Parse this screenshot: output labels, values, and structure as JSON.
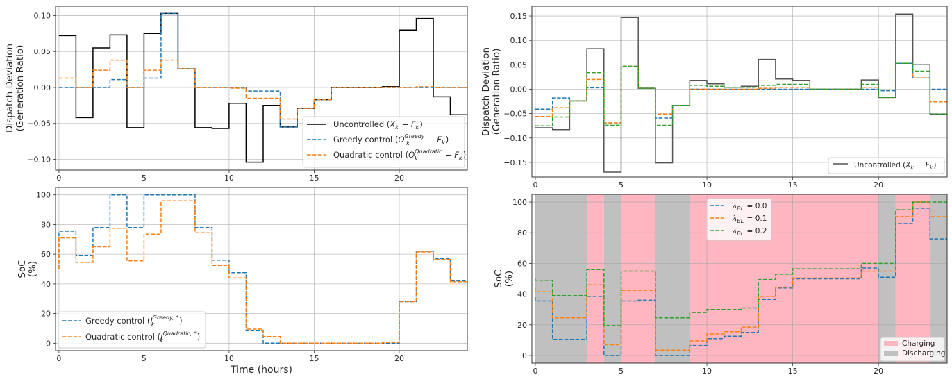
{
  "chart_data": [
    {
      "id": "dispatch-left",
      "type": "line",
      "step": "post",
      "title": "",
      "xlabel": "",
      "ylabel": [
        "Dispatch Deviation",
        "(Generation Ratio)"
      ],
      "xlim": [
        -0.2,
        24
      ],
      "ylim": [
        -0.115,
        0.113
      ],
      "xticks": [
        0,
        5,
        10,
        15,
        20
      ],
      "yticks": [
        -0.1,
        -0.05,
        0.0,
        0.05,
        0.1
      ],
      "ytick_labels": [
        "−0.10",
        "−0.05",
        "0.00",
        "0.05",
        "0.10"
      ],
      "grid": true,
      "legend_position": "lower-right",
      "series": [
        {
          "name": "Uncontrolled (X_k − F_k)",
          "label_parts": [
            "Uncontrolled (",
            "X",
            "k",
            " − ",
            "F",
            "k",
            ")"
          ],
          "color": "#000000",
          "style": "solid",
          "values": [
            0.072,
            -0.042,
            0.055,
            0.073,
            -0.056,
            0.075,
            0.103,
            0.026,
            -0.056,
            -0.057,
            -0.022,
            -0.104,
            -0.025,
            -0.055,
            -0.029,
            -0.017,
            0.0,
            0.0,
            0.0,
            0.001,
            0.08,
            0.096,
            -0.013,
            -0.038
          ]
        },
        {
          "name": "Greedy control (O_k^Greedy − F_k)",
          "color": "#1f77b4",
          "style": "dashed",
          "values": [
            0.0,
            0.0,
            0.0,
            0.011,
            0.0,
            0.013,
            0.103,
            0.026,
            0.0,
            0.0,
            0.0,
            -0.005,
            -0.005,
            -0.055,
            -0.029,
            -0.017,
            0.0,
            0.0,
            0.0,
            0.0,
            0.0,
            0.0,
            0.0,
            0.0
          ]
        },
        {
          "name": "Quadratic control (O_k^Quadratic − F_k)",
          "color": "#ff7f0e",
          "style": "dashed",
          "values": [
            0.013,
            0.0,
            0.024,
            0.038,
            0.0,
            0.024,
            0.038,
            0.026,
            0.0,
            0.0,
            -0.001,
            -0.015,
            -0.015,
            -0.044,
            -0.029,
            -0.017,
            0.0,
            0.0,
            0.0,
            0.0,
            0.0,
            0.001,
            0.0,
            0.0
          ]
        }
      ],
      "x": [
        0,
        1,
        2,
        3,
        4,
        5,
        6,
        7,
        8,
        9,
        10,
        11,
        12,
        13,
        14,
        15,
        16,
        17,
        18,
        19,
        20,
        21,
        22,
        23,
        24
      ]
    },
    {
      "id": "soc-left",
      "type": "line",
      "step": "post",
      "xlabel": "Time (hours)",
      "ylabel": [
        "SoC",
        "(%)"
      ],
      "xlim": [
        -0.2,
        24
      ],
      "ylim": [
        -5,
        105
      ],
      "xticks": [
        0,
        5,
        10,
        15,
        20
      ],
      "yticks": [
        0,
        20,
        40,
        60,
        80,
        100
      ],
      "grid": true,
      "legend_position": "lower-left",
      "series": [
        {
          "name": "Greedy control (I_k^{Greedy,*})",
          "color": "#1f77b4",
          "style": "dashed",
          "start": 50,
          "values": [
            75.5,
            59,
            78,
            100,
            78,
            100,
            100,
            100,
            78,
            56,
            47.5,
            8.5,
            0,
            0,
            0,
            0,
            0,
            0,
            0,
            0,
            28,
            62,
            57,
            42
          ]
        },
        {
          "name": "Quadratic control (I_k^{Quadratic,*})",
          "color": "#ff7f0e",
          "style": "dashed",
          "start": 50,
          "values": [
            71,
            54.5,
            65,
            77.5,
            55.5,
            73.5,
            96,
            96,
            74.5,
            52.5,
            44,
            9.5,
            4.5,
            0,
            0,
            0,
            0,
            0,
            0,
            0.5,
            28,
            61.5,
            56.5,
            41.5
          ]
        }
      ],
      "x": [
        0,
        1,
        2,
        3,
        4,
        5,
        6,
        7,
        8,
        9,
        10,
        11,
        12,
        13,
        14,
        15,
        16,
        17,
        18,
        19,
        20,
        21,
        22,
        23,
        24
      ]
    },
    {
      "id": "dispatch-right",
      "type": "line",
      "step": "post",
      "xlabel": "",
      "ylabel": [
        "Dispatch Deviation",
        "(Generation Ratio)"
      ],
      "xlim": [
        -0.2,
        24
      ],
      "ylim": [
        -0.18,
        0.17
      ],
      "xticks": [
        0,
        5,
        10,
        15,
        20
      ],
      "yticks": [
        -0.15,
        -0.1,
        -0.05,
        0.0,
        0.05,
        0.1,
        0.15
      ],
      "ytick_labels": [
        "−0.15",
        "−0.10",
        "−0.05",
        "0.00",
        "0.05",
        "0.10",
        "0.15"
      ],
      "grid": true,
      "legend_position": "lower-right",
      "series": [
        {
          "name": "Uncontrolled (X_k − F_k)",
          "color": "#555555",
          "style": "solid",
          "values": [
            -0.079,
            -0.083,
            -0.024,
            0.083,
            -0.17,
            0.147,
            0.002,
            -0.151,
            -0.033,
            0.018,
            0.011,
            0.004,
            0.006,
            0.061,
            0.021,
            0.018,
            0.0,
            0.0,
            0.0,
            0.019,
            -0.017,
            0.154,
            0.05,
            -0.051
          ]
        },
        {
          "name": "λ_BL = 0.0",
          "color": "#1f77b4",
          "style": "dashed",
          "values": [
            -0.041,
            -0.018,
            -0.024,
            0.003,
            -0.071,
            0.047,
            0.002,
            -0.059,
            -0.033,
            0.0,
            0.0,
            0.0,
            0.0,
            0.0,
            0.0,
            0.0,
            0.0,
            0.0,
            0.0,
            0.0,
            -0.003,
            0.053,
            0.023,
            0.0
          ]
        },
        {
          "name": "λ_BL = 0.1",
          "color": "#ff7f0e",
          "style": "dashed",
          "values": [
            -0.056,
            -0.038,
            -0.024,
            0.02,
            -0.069,
            0.047,
            0.002,
            -0.051,
            -0.033,
            0.0,
            0.0,
            0.0,
            0.0,
            0.002,
            0.004,
            0.004,
            0.0,
            0.0,
            0.0,
            0.004,
            -0.017,
            0.053,
            0.023,
            -0.026
          ]
        },
        {
          "name": "λ_BL = 0.2",
          "color": "#2ca02c",
          "style": "dashed",
          "values": [
            -0.075,
            -0.057,
            -0.024,
            0.034,
            -0.074,
            0.047,
            0.002,
            -0.074,
            -0.033,
            0.008,
            0.006,
            0.004,
            0.004,
            0.008,
            0.01,
            0.01,
            0.0,
            0.0,
            0.0,
            0.01,
            -0.017,
            0.053,
            0.037,
            -0.051
          ]
        }
      ],
      "x": [
        0,
        1,
        2,
        3,
        4,
        5,
        6,
        7,
        8,
        9,
        10,
        11,
        12,
        13,
        14,
        15,
        16,
        17,
        18,
        19,
        20,
        21,
        22,
        23,
        24
      ]
    },
    {
      "id": "soc-right",
      "type": "line",
      "step": "post",
      "xlabel": "",
      "ylabel": [
        "SoC",
        "(%)"
      ],
      "xlim": [
        -0.2,
        24
      ],
      "ylim": [
        -5,
        105
      ],
      "xticks": [
        0,
        5,
        10,
        15,
        20
      ],
      "yticks": [
        0,
        20,
        40,
        60,
        80,
        100
      ],
      "grid": true,
      "legend_position": "upper-left (lines), lower-right (regions)",
      "regions": [
        {
          "from": 0,
          "to": 3,
          "state": "Discharging"
        },
        {
          "from": 3,
          "to": 4,
          "state": "Charging"
        },
        {
          "from": 4,
          "to": 5,
          "state": "Discharging"
        },
        {
          "from": 5,
          "to": 7,
          "state": "Charging"
        },
        {
          "from": 7,
          "to": 9,
          "state": "Discharging"
        },
        {
          "from": 9,
          "to": 20,
          "state": "Charging"
        },
        {
          "from": 20,
          "to": 21,
          "state": "Discharging"
        },
        {
          "from": 21,
          "to": 23,
          "state": "Charging"
        },
        {
          "from": 23,
          "to": 24,
          "state": "Discharging"
        }
      ],
      "region_colors": {
        "Charging": "#ffb6c1",
        "Discharging": "#c0c0c0"
      },
      "series": [
        {
          "name": "λ_BL = 0.0",
          "color": "#1f77b4",
          "style": "dashed",
          "start": 38,
          "values": [
            35.5,
            10.5,
            10.5,
            38.5,
            0,
            35.5,
            36,
            0,
            0,
            6.5,
            11,
            12.5,
            15,
            36.5,
            44,
            50,
            50,
            50,
            50,
            57,
            51,
            86,
            96,
            76
          ]
        },
        {
          "name": "λ_BL = 0.1",
          "color": "#ff7f0e",
          "style": "dashed",
          "start": 44,
          "values": [
            41.5,
            24.5,
            24.5,
            46,
            7,
            42.5,
            42.5,
            3.5,
            3.5,
            9.5,
            14,
            15.5,
            18.5,
            38.5,
            44.5,
            50.5,
            50.5,
            50.5,
            50.5,
            55,
            55,
            90.5,
            100,
            90.5
          ]
        },
        {
          "name": "λ_BL = 0.2",
          "color": "#2ca02c",
          "style": "dashed",
          "start": 50,
          "values": [
            49,
            39,
            39,
            56,
            19.5,
            55,
            55,
            24.5,
            24.5,
            28,
            30,
            30,
            31,
            49.5,
            53,
            56.5,
            56.5,
            56.5,
            56.5,
            60,
            60,
            95,
            100,
            100
          ]
        }
      ],
      "x": [
        0,
        1,
        2,
        3,
        4,
        5,
        6,
        7,
        8,
        9,
        10,
        11,
        12,
        13,
        14,
        15,
        16,
        17,
        18,
        19,
        20,
        21,
        22,
        23,
        24
      ]
    }
  ],
  "legends": {
    "dispatch_left": [
      {
        "pre": "Uncontrolled (",
        "a": "X",
        "asub": "k",
        "mid": " − ",
        "b": "F",
        "bsub": "k",
        "post": ")"
      },
      {
        "pre": "Greedy control (",
        "a": "O",
        "asup": "Greedy",
        "asub": "k",
        "mid": " − ",
        "b": "F",
        "bsub": "k",
        "post": ")"
      },
      {
        "pre": "Quadratic control (",
        "a": "O",
        "asup": "Quadratic",
        "asub": "k",
        "mid": " − ",
        "b": "F",
        "bsub": "k",
        "post": ")"
      }
    ],
    "soc_left": [
      {
        "pre": "Greedy control (",
        "a": "I",
        "asup": "Greedy, *",
        "asub": "k",
        "post": ")"
      },
      {
        "pre": "Quadratic control (",
        "a": "I",
        "asup": "Quadratic, *",
        "asub": "k",
        "post": ")"
      }
    ],
    "dispatch_right": [
      {
        "pre": "Uncontrolled (",
        "a": "X",
        "asub": "k",
        "mid": " − ",
        "b": "F",
        "bsub": "k",
        "post": ")"
      }
    ],
    "soc_right_lines": [
      {
        "a": "λ",
        "asub": "BL",
        "post": " = 0.0"
      },
      {
        "a": "λ",
        "asub": "BL",
        "post": " = 0.1"
      },
      {
        "a": "λ",
        "asub": "BL",
        "post": " = 0.2"
      }
    ],
    "soc_right_regions": [
      "Charging",
      "Discharging"
    ]
  }
}
